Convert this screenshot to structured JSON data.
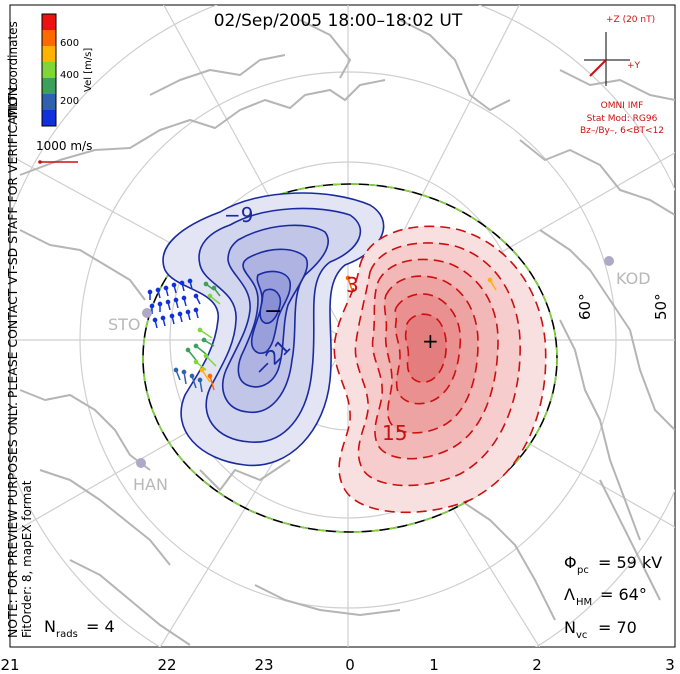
{
  "title": "02/Sep/2005 18:00–18:02 UT",
  "colorbar": {
    "ticks": [
      "600",
      "400",
      "200"
    ],
    "axis_label": "Vel [m/s]",
    "colors": [
      "#ee1111",
      "#ff6a00",
      "#ffb300",
      "#7fd63a",
      "#3aa05a",
      "#3060b0",
      "#1030e0"
    ]
  },
  "left_notes": {
    "coords": "MLT coordinates",
    "verification": "NOTE: FOR PREVIEW PURPOSES ONLY. PLEASE CONTACT VT-SD STAFF FOR VERIFICATION.",
    "fitorder": "FitOrder: 8, mapEX format"
  },
  "scale_vector": {
    "label": "1000 m/s"
  },
  "imf": {
    "z_label": "+Z (20 nT)",
    "y_label": "+Y",
    "source": "OMNI IMF",
    "stat_mod": "Stat Mod: RG96",
    "condition": "Bz–/By–, 6<BT<12"
  },
  "stations": [
    "STO",
    "KOD",
    "HAN"
  ],
  "latitude_labels": [
    "60°",
    "50°"
  ],
  "contours": {
    "neg_label_1": "−9",
    "neg_label_2": "−21",
    "pos_label_1": "3",
    "pos_label_2": "15",
    "min_marker": "−",
    "max_marker": "+"
  },
  "stats": {
    "phi_pc": {
      "symbol": "Φ",
      "sub": "pc",
      "value": "= 59 kV"
    },
    "lambda_hm": {
      "symbol": "Λ",
      "sub": "HM",
      "value": "= 64°"
    },
    "n_vc": {
      "symbol": "N",
      "sub": "vc",
      "value": "= 70"
    },
    "n_rads": {
      "symbol": "N",
      "sub": "rads",
      "value": "= 4"
    }
  },
  "mlt_axis": [
    "21",
    "22",
    "23",
    "0",
    "1",
    "2",
    "3"
  ],
  "colors": {
    "neg": "#1a2aa0",
    "pos": "#cc1010",
    "boundary_dash": "#7fd63a",
    "grid": "#c8c8c8",
    "coast": "#b8b8b8"
  }
}
